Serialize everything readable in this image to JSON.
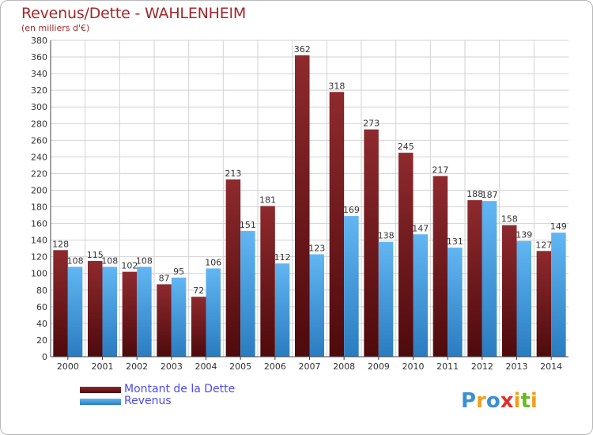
{
  "header": {
    "title": "Revenus/Dette - WAHLENHEIM",
    "subtitle": "(en milliers d'€)"
  },
  "legend": {
    "items": [
      {
        "label": "Montant de la Dette",
        "color": "#7a1c20"
      },
      {
        "label": "Revenus",
        "color": "#3d9ad9"
      }
    ]
  },
  "logo": {
    "text": "Proxiti"
  },
  "chart_data": {
    "type": "bar",
    "title": "Revenus/Dette - WAHLENHEIM",
    "subtitle": "(en milliers d'€)",
    "xlabel": "",
    "ylabel": "",
    "categories": [
      "2000",
      "2001",
      "2002",
      "2003",
      "2004",
      "2005",
      "2006",
      "2007",
      "2008",
      "2009",
      "2010",
      "2011",
      "2012",
      "2013",
      "2014"
    ],
    "series": [
      {
        "name": "Montant de la Dette",
        "color": "#7a1c20",
        "values": [
          128,
          115,
          102,
          87,
          72,
          213,
          181,
          362,
          318,
          273,
          245,
          217,
          188,
          158,
          127
        ]
      },
      {
        "name": "Revenus",
        "color": "#3d9ad9",
        "values": [
          108,
          108,
          108,
          95,
          106,
          151,
          112,
          123,
          169,
          138,
          147,
          131,
          187,
          139,
          149
        ]
      }
    ],
    "ylim": [
      0,
      380
    ],
    "ytick_step": 20,
    "grid": true,
    "legend_position": "bottom-left"
  }
}
